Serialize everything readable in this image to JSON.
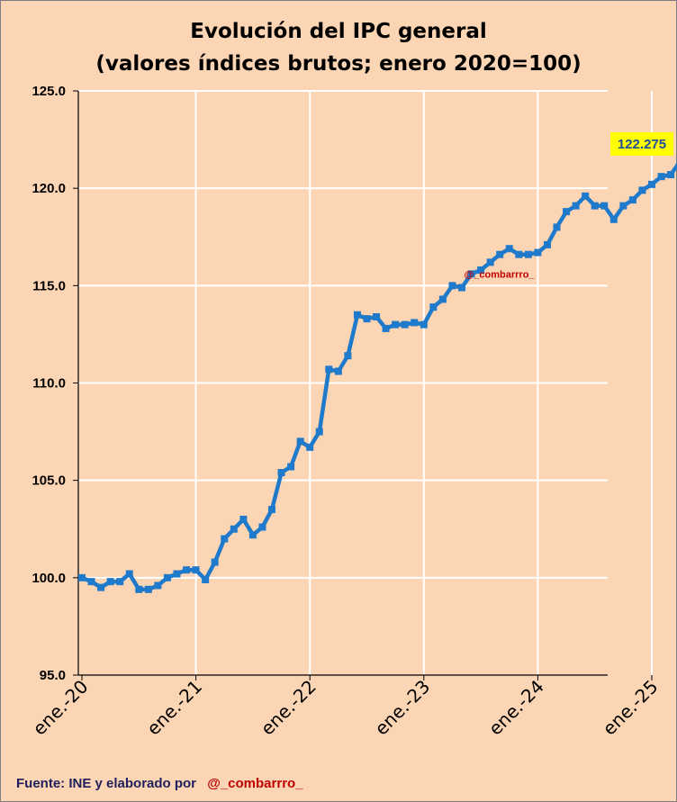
{
  "chart_data": {
    "type": "line",
    "title": "Evolución del IPC general",
    "subtitle": "(valores índices brutos;   enero 2020=100)",
    "xlabel": "",
    "ylabel": "",
    "ylim": [
      95,
      125
    ],
    "y_ticks": [
      "95.0",
      "100.0",
      "105.0",
      "110.0",
      "115.0",
      "120.0",
      "125.0"
    ],
    "x_tick_labels": [
      "ene.-20",
      "ene.-21",
      "ene.-22",
      "ene.-23",
      "ene.-24",
      "ene.-25"
    ],
    "grid": "vertical and horizontal",
    "series": [
      {
        "values": [
          100.0,
          99.8,
          99.5,
          99.8,
          99.8,
          100.2,
          99.4,
          99.4,
          99.6,
          100.0,
          100.2,
          100.4,
          100.4,
          99.9,
          100.8,
          102.0,
          102.5,
          103.0,
          102.2,
          102.6,
          103.5,
          105.4,
          105.7,
          107.0,
          106.7,
          107.5,
          110.7,
          110.6,
          111.4,
          113.5,
          113.3,
          113.4,
          112.8,
          113.0,
          113.0,
          113.1,
          113.0,
          113.9,
          114.3,
          115.0,
          114.9,
          115.6,
          115.8,
          116.2,
          116.6,
          116.9,
          116.6,
          116.6,
          116.7,
          117.1,
          118.0,
          118.8,
          119.1,
          119.6,
          119.1,
          119.1,
          118.4,
          119.1,
          119.4,
          119.9,
          120.2,
          120.6,
          120.7,
          121.4,
          121.6,
          122.3,
          122.275
        ]
      }
    ],
    "last_value_label": "122.275",
    "colors": {
      "line": "#1f7acb",
      "background": "#fcd5b5",
      "grid": "#ffffff",
      "last_label_bg": "#ffff00"
    }
  },
  "watermark": "@_combarrro_",
  "footer": {
    "source": "Fuente: INE y elaborado por",
    "handle": "@_combarrro_"
  }
}
